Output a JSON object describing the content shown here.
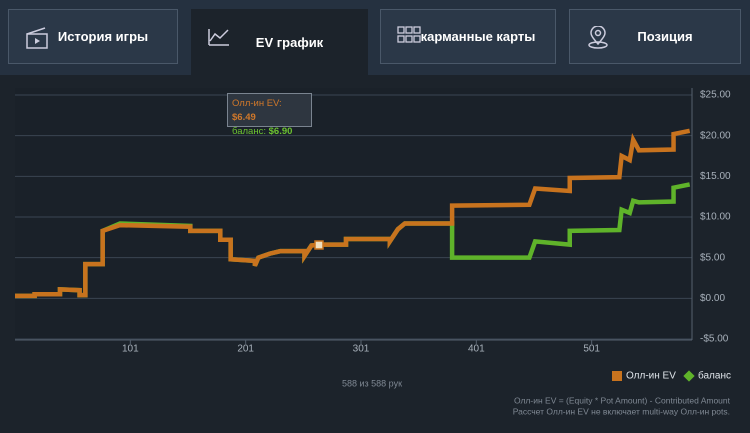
{
  "tabs": [
    "История игры",
    "EV график",
    "карманные карты",
    "Позиция"
  ],
  "tooltip": [
    {
      "label": "Олл-ин EV:",
      "value": "$6.49"
    },
    {
      "label": "баланс:",
      "value": "$6.90"
    }
  ],
  "hand_count": "588 из 588 рук",
  "notes": [
    "Олл-ин EV = (Equity * Pot Amount) - Contributed Amount",
    "Рассчет Олл-ин EV не включает multi-way Олл-ин pots."
  ],
  "chart_data": {
    "type": "line",
    "x": [
      1,
      18,
      18,
      40,
      40,
      57,
      57,
      62,
      62,
      77,
      77,
      92,
      153,
      153,
      179,
      179,
      188,
      188,
      209,
      209,
      212,
      222,
      231,
      252,
      252,
      258,
      265,
      288,
      288,
      326,
      326,
      333,
      339,
      380,
      380,
      447,
      452,
      482,
      482,
      525,
      527,
      534,
      537,
      542,
      572,
      572,
      586
    ],
    "series": [
      {
        "name": "Олл-ин EV",
        "color": "#c8731e",
        "values": [
          0.3,
          0.3,
          0.5,
          0.5,
          1.1,
          1.0,
          0.4,
          0.4,
          4.2,
          4.2,
          8.3,
          9.0,
          8.8,
          8.3,
          8.3,
          7.2,
          7.2,
          4.8,
          4.6,
          4.0,
          5.0,
          5.5,
          5.8,
          5.8,
          5.2,
          6.5,
          6.6,
          6.6,
          7.3,
          7.3,
          7.0,
          8.5,
          9.2,
          9.2,
          11.4,
          11.5,
          13.5,
          13.2,
          14.8,
          14.9,
          17.5,
          17.0,
          19.5,
          18.2,
          18.3,
          20.2,
          20.6
        ]
      },
      {
        "name": "баланс",
        "color": "#5fb32a",
        "values": [
          0.3,
          0.3,
          0.5,
          0.5,
          1.1,
          1.0,
          0.4,
          0.4,
          4.2,
          4.2,
          8.3,
          9.2,
          8.9,
          8.3,
          8.3,
          7.2,
          7.2,
          4.8,
          4.6,
          4.0,
          5.0,
          5.5,
          5.8,
          5.8,
          5.2,
          6.5,
          6.6,
          6.6,
          7.3,
          7.3,
          7.0,
          8.5,
          9.2,
          9.2,
          5.0,
          5.0,
          7.0,
          6.6,
          8.3,
          8.4,
          10.9,
          10.5,
          12.0,
          11.8,
          11.9,
          13.6,
          14.0
        ]
      }
    ],
    "xlim": [
      1,
      588
    ],
    "xticks": [
      101,
      201,
      301,
      401,
      501
    ],
    "ylim": [
      -5,
      25
    ],
    "yticks": [
      {
        "value": -5,
        "label": "-$5.00"
      },
      {
        "value": 0,
        "label": "$0.00"
      },
      {
        "value": 5,
        "label": "$5.00"
      },
      {
        "value": 10,
        "label": "$10.00"
      },
      {
        "value": 15,
        "label": "$15.00"
      },
      {
        "value": 20,
        "label": "$20.00"
      },
      {
        "value": 25,
        "label": "$25.00"
      }
    ],
    "grid": true,
    "legend": "bottom-right"
  }
}
